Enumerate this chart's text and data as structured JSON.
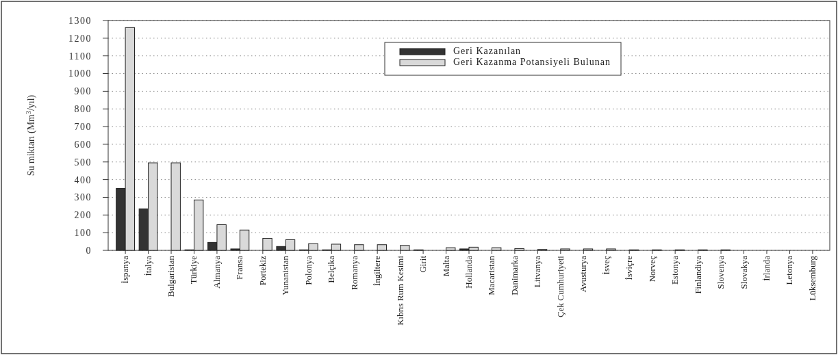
{
  "chart_data": {
    "type": "bar",
    "ylabel": "Su miktarı (Mm$^{3}$/yıl)",
    "categories": [
      "İspanya",
      "İtalya",
      "Bulgaristan",
      "Türkiye",
      "Almanya",
      "Fransa",
      "Portekiz",
      "Yunanistan",
      "Polonya",
      "Belçika",
      "Romanya",
      "İngiltere",
      "Kıbrıs Rum Kesimi",
      "Girit",
      "Malta",
      "Hollanda",
      "Macaristan",
      "Danimarka",
      "Litvanya",
      "Çek Cumhuriyeti",
      "Avusturya",
      "İsveç",
      "İsviçre",
      "Norveç",
      "Estonya",
      "Finlandiya",
      "Slovenya",
      "Slovakya",
      "İrlanda",
      "Letonya",
      "Lüksemburg"
    ],
    "series": [
      {
        "name": "Geri Kazanılan",
        "color": "#333333",
        "values": [
          350,
          235,
          0,
          3,
          45,
          8,
          0,
          22,
          3,
          3,
          0,
          0,
          0,
          3,
          0,
          8,
          0,
          0,
          0,
          0,
          0,
          0,
          0,
          0,
          0,
          0,
          0,
          0,
          0,
          0,
          0
        ]
      },
      {
        "name": "Geri Kazanma Potansiyeli Bulunan",
        "color": "#d9d9d9",
        "values": [
          1260,
          495,
          495,
          285,
          145,
          115,
          68,
          60,
          38,
          35,
          32,
          32,
          28,
          0,
          15,
          18,
          15,
          10,
          5,
          8,
          8,
          8,
          3,
          3,
          3,
          3,
          3,
          0,
          0,
          0,
          0
        ]
      }
    ],
    "ylim": [
      0,
      1300
    ],
    "yticks": [
      0,
      100,
      200,
      300,
      400,
      500,
      600,
      700,
      800,
      900,
      1000,
      1100,
      1200,
      1300
    ],
    "grid": "y",
    "legend": "top right"
  }
}
